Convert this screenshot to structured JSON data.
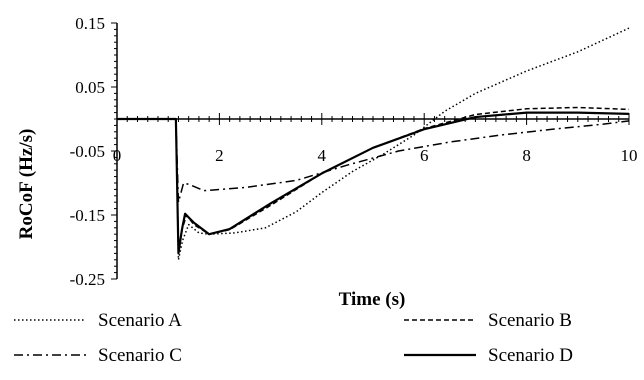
{
  "chart_data": {
    "type": "line",
    "title": "",
    "xlabel": "Time (s)",
    "ylabel": "RoCoF (Hz/s)",
    "xlim": [
      0,
      10
    ],
    "ylim": [
      -0.25,
      0.15
    ],
    "x_ticks": [
      0,
      2,
      4,
      6,
      8,
      10
    ],
    "x_tick_labels": [
      "0",
      "2",
      "4",
      "6",
      "8",
      "10"
    ],
    "y_ticks": [
      0.15,
      0.05,
      -0.05,
      -0.15,
      -0.25
    ],
    "y_tick_labels": [
      "0.15",
      "0.05",
      "-0.05",
      "-0.15",
      "-0.25"
    ],
    "grid": false,
    "legend_position": "bottom",
    "series": [
      {
        "name": "Scenario A",
        "style": "dotted",
        "color": "#000000",
        "points": [
          [
            0,
            0
          ],
          [
            1.15,
            0
          ],
          [
            1.2,
            -0.22
          ],
          [
            1.28,
            -0.19
          ],
          [
            1.4,
            -0.165
          ],
          [
            1.6,
            -0.178
          ],
          [
            1.8,
            -0.18
          ],
          [
            2.3,
            -0.178
          ],
          [
            2.9,
            -0.17
          ],
          [
            3.5,
            -0.145
          ],
          [
            4.0,
            -0.115
          ],
          [
            4.6,
            -0.082
          ],
          [
            5.2,
            -0.055
          ],
          [
            5.8,
            -0.025
          ],
          [
            6.4,
            0.012
          ],
          [
            7.0,
            0.04
          ],
          [
            8.0,
            0.075
          ],
          [
            9.0,
            0.105
          ],
          [
            10,
            0.142
          ]
        ]
      },
      {
        "name": "Scenario B",
        "style": "dashed",
        "color": "#000000",
        "points": [
          [
            0,
            0
          ],
          [
            1.15,
            0
          ],
          [
            1.2,
            -0.205
          ],
          [
            1.28,
            -0.17
          ],
          [
            1.36,
            -0.15
          ],
          [
            1.5,
            -0.165
          ],
          [
            1.8,
            -0.18
          ],
          [
            2.2,
            -0.173
          ],
          [
            3.0,
            -0.135
          ],
          [
            4.0,
            -0.085
          ],
          [
            5.0,
            -0.045
          ],
          [
            6.0,
            -0.015
          ],
          [
            7.0,
            0.007
          ],
          [
            8.0,
            0.016
          ],
          [
            9.0,
            0.018
          ],
          [
            10,
            0.015
          ]
        ]
      },
      {
        "name": "Scenario C",
        "style": "dashdot",
        "color": "#000000",
        "points": [
          [
            0,
            0
          ],
          [
            1.15,
            0
          ],
          [
            1.2,
            -0.13
          ],
          [
            1.3,
            -0.1
          ],
          [
            1.4,
            -0.102
          ],
          [
            1.7,
            -0.112
          ],
          [
            2.5,
            -0.107
          ],
          [
            3.5,
            -0.096
          ],
          [
            4.5,
            -0.072
          ],
          [
            5.5,
            -0.05
          ],
          [
            6.5,
            -0.036
          ],
          [
            7.5,
            -0.025
          ],
          [
            8.5,
            -0.016
          ],
          [
            9.5,
            -0.008
          ],
          [
            10,
            -0.003
          ]
        ]
      },
      {
        "name": "Scenario D",
        "style": "solid",
        "color": "#000000",
        "points": [
          [
            0,
            0
          ],
          [
            1.15,
            0
          ],
          [
            1.2,
            -0.21
          ],
          [
            1.27,
            -0.172
          ],
          [
            1.33,
            -0.148
          ],
          [
            1.5,
            -0.162
          ],
          [
            1.8,
            -0.18
          ],
          [
            2.2,
            -0.172
          ],
          [
            3.0,
            -0.132
          ],
          [
            4.0,
            -0.085
          ],
          [
            5.0,
            -0.045
          ],
          [
            6.0,
            -0.016
          ],
          [
            7.0,
            0.003
          ],
          [
            8.0,
            0.01
          ],
          [
            9.0,
            0.01
          ],
          [
            10,
            0.008
          ]
        ]
      }
    ]
  }
}
